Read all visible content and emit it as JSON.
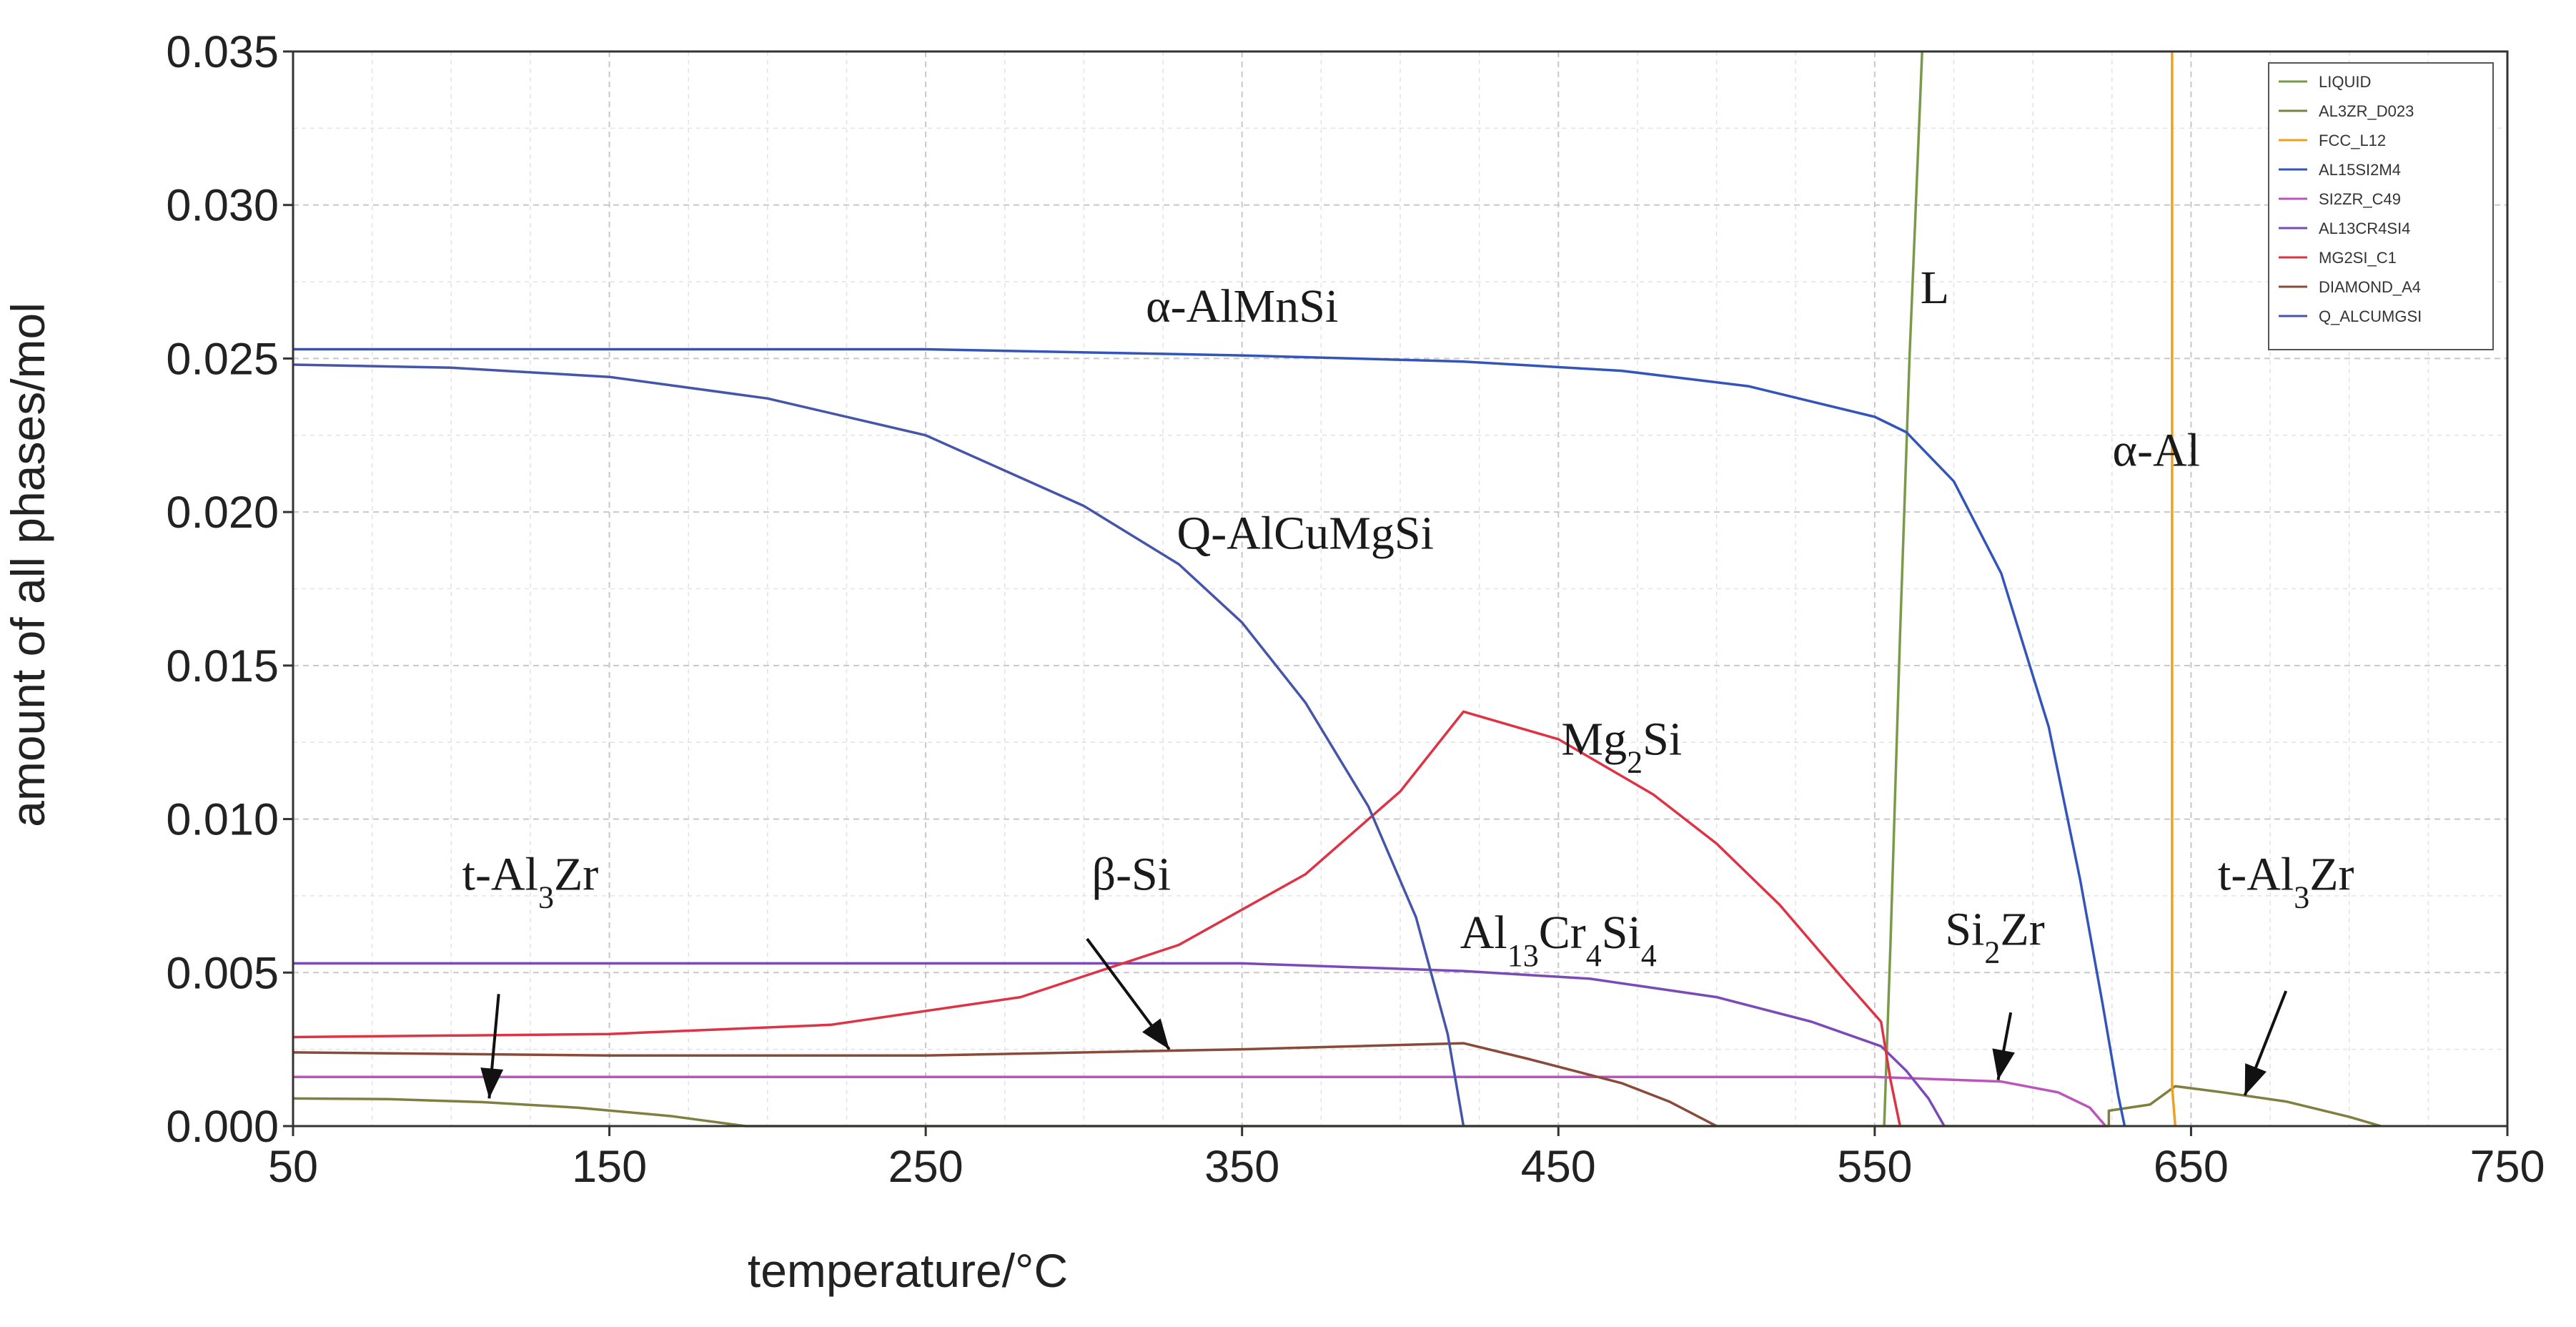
{
  "chart_data": {
    "type": "line",
    "xlabel": "temperature/°C",
    "ylabel": "amount of all phases/mol",
    "xlim": [
      50,
      750
    ],
    "ylim": [
      0,
      0.035
    ],
    "grid": true,
    "legend_position": "top-right",
    "x_ticks": [
      {
        "value": 50,
        "label": "50"
      },
      {
        "value": 150,
        "label": "150"
      },
      {
        "value": 250,
        "label": "250"
      },
      {
        "value": 350,
        "label": "350"
      },
      {
        "value": 450,
        "label": "450"
      },
      {
        "value": 550,
        "label": "550"
      },
      {
        "value": 650,
        "label": "650"
      },
      {
        "value": 750,
        "label": "750"
      }
    ],
    "y_ticks": [
      {
        "value": 0.0,
        "label": "0.000"
      },
      {
        "value": 0.005,
        "label": "0.005"
      },
      {
        "value": 0.01,
        "label": "0.010"
      },
      {
        "value": 0.015,
        "label": "0.015"
      },
      {
        "value": 0.02,
        "label": "0.020"
      },
      {
        "value": 0.025,
        "label": "0.025"
      },
      {
        "value": 0.03,
        "label": "0.030"
      },
      {
        "value": 0.035,
        "label": "0.035"
      }
    ],
    "series": [
      {
        "name": "LIQUID",
        "color": "#7a9a4a",
        "points": [
          [
            553,
            0
          ],
          [
            555,
            0.006
          ],
          [
            558,
            0.016
          ],
          [
            561,
            0.025
          ],
          [
            563,
            0.03
          ],
          [
            565,
            0.035
          ]
        ]
      },
      {
        "name": "AL3ZR_D023",
        "color": "#7f7f3f",
        "points": [
          [
            50,
            0.0009
          ],
          [
            80,
            0.00088
          ],
          [
            110,
            0.00078
          ],
          [
            140,
            0.0006
          ],
          [
            170,
            0.00032
          ],
          [
            193,
            0
          ],
          [
            624,
            0
          ],
          [
            624,
            0.0005
          ],
          [
            637,
            0.0007
          ],
          [
            645,
            0.0013
          ],
          [
            660,
            0.0011
          ],
          [
            680,
            0.0008
          ],
          [
            700,
            0.0003
          ],
          [
            710,
            0
          ]
        ]
      },
      {
        "name": "FCC_L12",
        "color": "#f0a020",
        "points": [
          [
            644,
            0.035
          ],
          [
            644,
            0.0013
          ],
          [
            645,
            0
          ]
        ]
      },
      {
        "name": "AL15SI2M4",
        "color": "#3355bb",
        "points": [
          [
            50,
            0.0253
          ],
          [
            150,
            0.0253
          ],
          [
            250,
            0.0253
          ],
          [
            350,
            0.0251
          ],
          [
            420,
            0.0249
          ],
          [
            470,
            0.0246
          ],
          [
            510,
            0.0241
          ],
          [
            550,
            0.0231
          ],
          [
            560,
            0.0226
          ],
          [
            575,
            0.021
          ],
          [
            590,
            0.018
          ],
          [
            605,
            0.013
          ],
          [
            615,
            0.008
          ],
          [
            622,
            0.004
          ],
          [
            627,
            0.001
          ],
          [
            629,
            0
          ]
        ]
      },
      {
        "name": "SI2ZR_C49",
        "color": "#bb55bb",
        "points": [
          [
            50,
            0.0016
          ],
          [
            200,
            0.0016
          ],
          [
            400,
            0.0016
          ],
          [
            550,
            0.0016
          ],
          [
            590,
            0.00145
          ],
          [
            608,
            0.0011
          ],
          [
            618,
            0.0006
          ],
          [
            623,
            0
          ]
        ]
      },
      {
        "name": "AL13CR4SI4",
        "color": "#7a4ab8",
        "points": [
          [
            50,
            0.0053
          ],
          [
            200,
            0.0053
          ],
          [
            350,
            0.0053
          ],
          [
            420,
            0.00505
          ],
          [
            460,
            0.0048
          ],
          [
            500,
            0.0042
          ],
          [
            530,
            0.0034
          ],
          [
            552,
            0.0026
          ],
          [
            560,
            0.0018
          ],
          [
            567,
            0.0009
          ],
          [
            572,
            0
          ]
        ]
      },
      {
        "name": "MG2SI_C1",
        "color": "#dd3344",
        "points": [
          [
            50,
            0.0029
          ],
          [
            150,
            0.003
          ],
          [
            220,
            0.0033
          ],
          [
            280,
            0.0042
          ],
          [
            330,
            0.0059
          ],
          [
            370,
            0.0082
          ],
          [
            400,
            0.0109
          ],
          [
            420,
            0.0135
          ],
          [
            450,
            0.0126
          ],
          [
            480,
            0.0108
          ],
          [
            500,
            0.0092
          ],
          [
            520,
            0.0072
          ],
          [
            540,
            0.0048
          ],
          [
            552,
            0.0034
          ],
          [
            555,
            0.0015
          ],
          [
            558,
            0
          ]
        ]
      },
      {
        "name": "DIAMOND_A4",
        "color": "#8a4a3a",
        "points": [
          [
            50,
            0.0024
          ],
          [
            150,
            0.0023
          ],
          [
            250,
            0.0023
          ],
          [
            350,
            0.0025
          ],
          [
            420,
            0.0027
          ],
          [
            440,
            0.0022
          ],
          [
            470,
            0.0014
          ],
          [
            485,
            0.0008
          ],
          [
            500,
            0
          ]
        ]
      },
      {
        "name": "Q_ALCUMGSI",
        "color": "#4455aa",
        "points": [
          [
            50,
            0.0248
          ],
          [
            100,
            0.0247
          ],
          [
            150,
            0.0244
          ],
          [
            200,
            0.0237
          ],
          [
            250,
            0.0225
          ],
          [
            300,
            0.0202
          ],
          [
            330,
            0.0183
          ],
          [
            350,
            0.0164
          ],
          [
            370,
            0.0138
          ],
          [
            390,
            0.0104
          ],
          [
            405,
            0.0068
          ],
          [
            415,
            0.003
          ],
          [
            420,
            0
          ]
        ]
      }
    ],
    "annotations": [
      {
        "label_html": "&alpha;-AlMnSi",
        "x": 350,
        "y": 0.0262
      },
      {
        "label_html": "L",
        "x": 569,
        "y": 0.0268
      },
      {
        "label_html": "&alpha;-Al",
        "x": 639,
        "y": 0.0215
      },
      {
        "label_html": "Q-AlCuMgSi",
        "x": 370,
        "y": 0.0188
      },
      {
        "label_html": "Mg<tspan baseline-shift='sub' font-size='44'>2</tspan>Si",
        "x": 470,
        "y": 0.0121
      },
      {
        "label_html": "&beta;-Si",
        "x": 315,
        "y": 0.0077
      },
      {
        "label_html": "Al<tspan baseline-shift='sub' font-size='44'>13</tspan>Cr<tspan baseline-shift='sub' font-size='44'>4</tspan>Si<tspan baseline-shift='sub' font-size='44'>4</tspan>",
        "x": 450,
        "y": 0.0058
      },
      {
        "label_html": "t-Al<tspan baseline-shift='sub' font-size='44'>3</tspan>Zr",
        "x": 125,
        "y": 0.0077
      },
      {
        "label_html": "Si<tspan baseline-shift='sub' font-size='44'>2</tspan>Zr",
        "x": 588,
        "y": 0.0059
      },
      {
        "label_html": "t-Al<tspan baseline-shift='sub' font-size='44'>3</tspan>Zr",
        "x": 680,
        "y": 0.0077
      }
    ],
    "arrows": [
      {
        "from": [
          115,
          0.0043
        ],
        "to": [
          112,
          0.0009
        ]
      },
      {
        "from": [
          301,
          0.0061
        ],
        "to": [
          327,
          0.0025
        ]
      },
      {
        "from": [
          593,
          0.0037
        ],
        "to": [
          589,
          0.0015
        ]
      },
      {
        "from": [
          680,
          0.0044
        ],
        "to": [
          667,
          0.001
        ]
      }
    ]
  }
}
